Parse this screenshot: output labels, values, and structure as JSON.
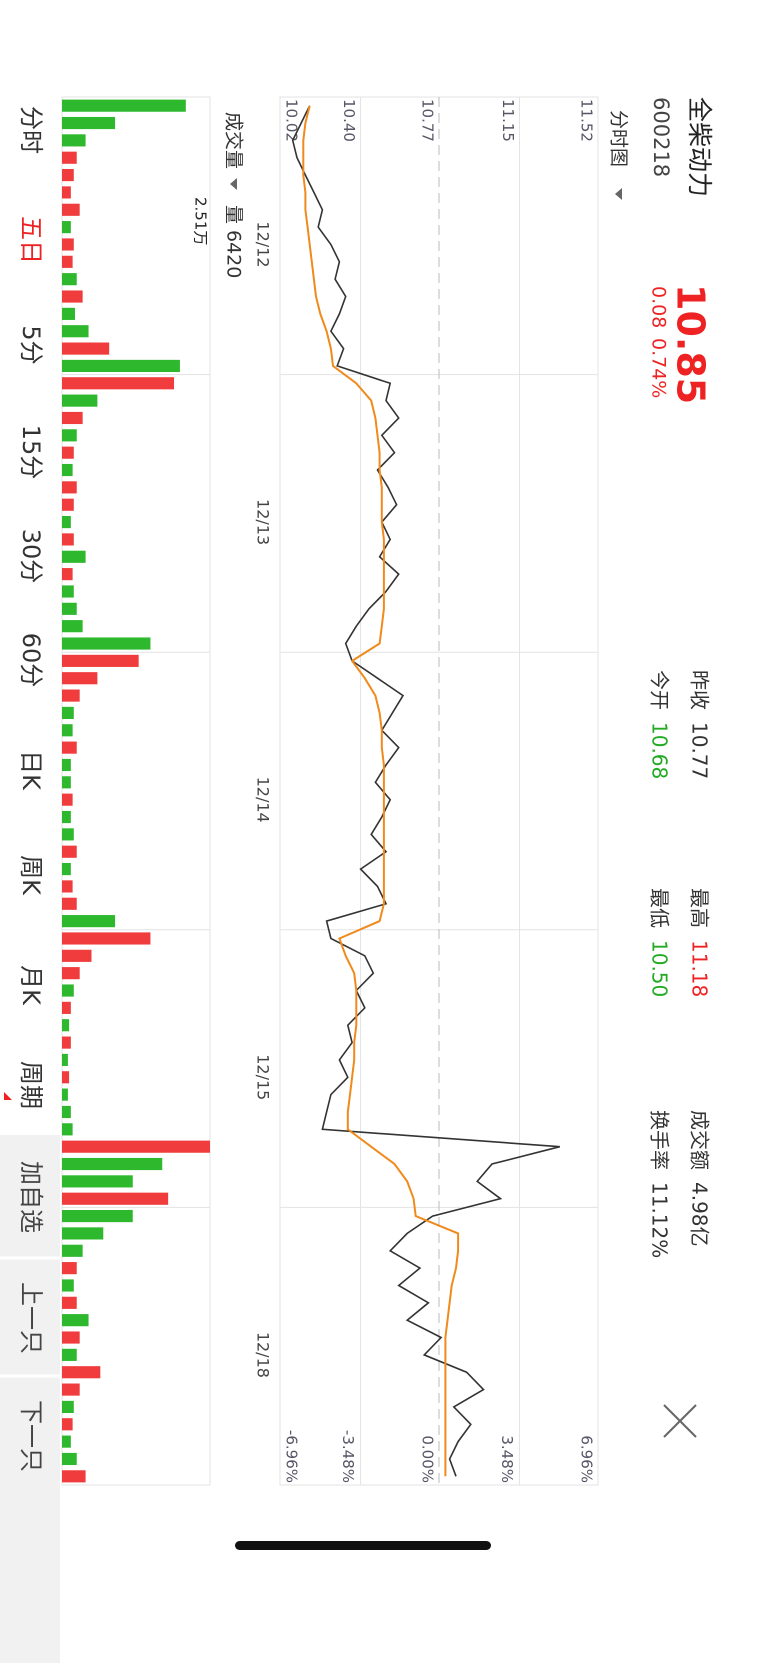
{
  "header": {
    "name": "全柴动力",
    "code": "600218",
    "price": "10.85",
    "change": "0.08",
    "change_pct": "0.74%",
    "stats": [
      {
        "label": "昨收",
        "value": "10.77"
      },
      {
        "label": "今开",
        "value": "10.68"
      },
      {
        "label": "最高",
        "value": "11.18"
      },
      {
        "label": "最低",
        "value": "10.50"
      },
      {
        "label": "成交额",
        "value": "4.98亿"
      },
      {
        "label": "换手率",
        "value": "11.12%"
      }
    ]
  },
  "chart_mode": "分时图",
  "volume_header": {
    "label": "成交量",
    "value_label": "量",
    "value": "6420"
  },
  "chart_data": [
    {
      "type": "line",
      "categories": [
        null,
        null,
        null,
        null,
        null,
        null,
        null,
        null,
        "12/12",
        null,
        null,
        null,
        null,
        null,
        null,
        null,
        null,
        null,
        null,
        null,
        null,
        null,
        null,
        null,
        "12/13",
        null,
        null,
        null,
        null,
        null,
        null,
        null,
        null,
        null,
        null,
        null,
        null,
        null,
        null,
        null,
        "12/14",
        null,
        null,
        null,
        null,
        null,
        null,
        null,
        null,
        null,
        null,
        null,
        null,
        null,
        null,
        null,
        "12/15",
        null,
        null,
        null,
        null,
        null,
        null,
        null,
        null,
        null,
        null,
        null,
        null,
        null,
        null,
        null,
        "12/18",
        null,
        null,
        null,
        null,
        null,
        null,
        null
      ],
      "series": [
        {
          "color": "#333333",
          "values": [
            10.16,
            10.12,
            10.08,
            10.1,
            10.14,
            10.18,
            10.22,
            10.2,
            10.26,
            10.3,
            10.28,
            10.33,
            10.3,
            10.26,
            10.32,
            10.29,
            10.54,
            10.52,
            10.58,
            10.5,
            10.56,
            10.48,
            10.53,
            10.57,
            10.5,
            10.54,
            10.49,
            10.58,
            10.52,
            10.44,
            10.38,
            10.33,
            10.36,
            10.48,
            10.6,
            10.55,
            10.5,
            10.58,
            10.52,
            10.47,
            10.54,
            10.5,
            10.45,
            10.52,
            10.4,
            10.48,
            10.52,
            10.24,
            10.26,
            10.42,
            10.46,
            10.38,
            10.42,
            10.34,
            10.36,
            10.3,
            10.34,
            10.26,
            10.24,
            10.22,
            11.34,
            11.02,
            10.95,
            11.06,
            10.74,
            10.62,
            10.54,
            10.68,
            10.58,
            10.72,
            10.62,
            10.78,
            10.7,
            10.9,
            10.98,
            10.84,
            10.92,
            10.86,
            10.82,
            10.85
          ]
        },
        {
          "color": "#f08a1c",
          "values": [
            10.16,
            10.14,
            10.13,
            10.13,
            10.13,
            10.14,
            10.14,
            10.15,
            10.16,
            10.17,
            10.18,
            10.19,
            10.21,
            10.24,
            10.26,
            10.27,
            10.38,
            10.45,
            10.47,
            10.48,
            10.49,
            10.49,
            10.5,
            10.5,
            10.5,
            10.51,
            10.51,
            10.51,
            10.51,
            10.51,
            10.5,
            10.49,
            10.36,
            10.42,
            10.47,
            10.49,
            10.5,
            10.5,
            10.51,
            10.51,
            10.51,
            10.51,
            10.51,
            10.51,
            10.51,
            10.51,
            10.51,
            10.49,
            10.3,
            10.33,
            10.37,
            10.38,
            10.38,
            10.38,
            10.37,
            10.37,
            10.36,
            10.35,
            10.34,
            10.34,
            10.45,
            10.56,
            10.62,
            10.65,
            10.66,
            10.86,
            10.86,
            10.85,
            10.83,
            10.82,
            10.81,
            10.8,
            10.8,
            10.8,
            10.8,
            10.8,
            10.8,
            10.8,
            10.8,
            10.8
          ]
        }
      ],
      "ylim": [
        10.02,
        11.52
      ],
      "yticks": [
        {
          "value": 11.52,
          "label": "11.52"
        },
        {
          "value": 11.15,
          "label": "11.15"
        },
        {
          "value": 10.77,
          "label": "10.77"
        },
        {
          "value": 10.4,
          "label": "10.40"
        },
        {
          "value": 10.02,
          "label": "10.02"
        }
      ],
      "y2lim": [
        -6.96,
        6.96
      ],
      "y2ticks": [
        {
          "value": 6.96,
          "label": "6.96%"
        },
        {
          "value": 3.48,
          "label": "3.48%"
        },
        {
          "value": 0,
          "label": "0.00%"
        },
        {
          "value": -3.48,
          "label": "-3.48%"
        },
        {
          "value": -6.96,
          "label": "-6.96%"
        }
      ],
      "grid": true
    },
    {
      "type": "bar",
      "values": [
        21000,
        9000,
        4000,
        2500,
        2000,
        1500,
        3000,
        1500,
        2000,
        1800,
        2500,
        3500,
        2200,
        4500,
        8000,
        20000,
        19000,
        6000,
        3500,
        2500,
        2000,
        1800,
        2500,
        2000,
        1500,
        2000,
        4000,
        1800,
        2000,
        2500,
        3500,
        15000,
        13000,
        6000,
        3000,
        2000,
        1800,
        2500,
        1500,
        1500,
        1800,
        1500,
        2000,
        2500,
        1500,
        1800,
        2500,
        9000,
        15000,
        5000,
        3000,
        2000,
        1500,
        1200,
        1500,
        1000,
        1200,
        1000,
        1500,
        1800,
        25100,
        17000,
        12000,
        18000,
        12000,
        7000,
        3500,
        2500,
        2000,
        2500,
        4500,
        3000,
        2500,
        6500,
        3000,
        2000,
        1800,
        1500,
        2500,
        4000
      ],
      "up_color": "#f03c3c",
      "down_color": "#2db82d",
      "ylim": [
        0,
        25100
      ],
      "yticks": [
        {
          "value": 25100,
          "label": "2.51万"
        }
      ]
    }
  ],
  "tabs": [
    "分时",
    "五日",
    "5分",
    "15分",
    "30分",
    "60分",
    "日K",
    "周K",
    "月K",
    "周期"
  ],
  "active_tab": 1,
  "buttons": [
    "加自选",
    "上一只",
    "下一只"
  ]
}
